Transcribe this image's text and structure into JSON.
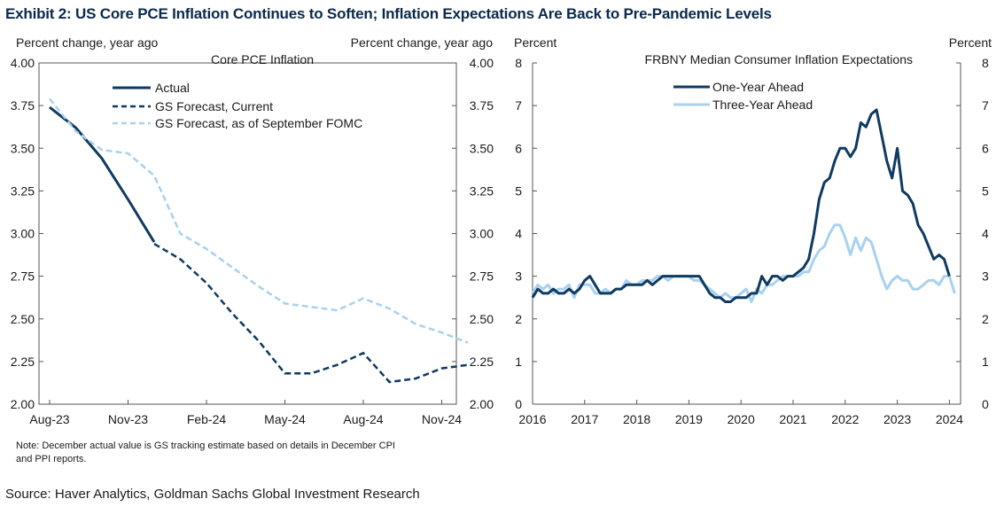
{
  "exhibit_title": "Exhibit 2: US Core PCE Inflation Continues to Soften; Inflation Expectations Are Back to Pre-Pandemic Levels",
  "source": "Source: Haver Analytics, Goldman Sachs Global Investment Research",
  "colors": {
    "navy": "#0f3a61",
    "light_blue": "#a9d1f0",
    "title": "#0b2a4a"
  },
  "chart_data": [
    {
      "type": "line",
      "title": "Core PCE Inflation",
      "ylabel_left": "Percent change, year ago",
      "ylabel_right": "Percent change, year ago",
      "ylim": [
        2.0,
        4.0
      ],
      "yticks": [
        "4.00",
        "3.75",
        "3.50",
        "3.25",
        "3.00",
        "2.75",
        "2.50",
        "2.25",
        "2.00"
      ],
      "xticks": [
        {
          "x": "2023-08",
          "label": "Aug-23"
        },
        {
          "x": "2023-11",
          "label": "Nov-23"
        },
        {
          "x": "2024-02",
          "label": "Feb-24"
        },
        {
          "x": "2024-05",
          "label": "May-24"
        },
        {
          "x": "2024-08",
          "label": "Aug-24"
        },
        {
          "x": "2024-11",
          "label": "Nov-24"
        }
      ],
      "legend_position": "top-left",
      "note": "Note: December actual value is GS tracking estimate based on details in December CPI and PPI reports.",
      "series": [
        {
          "name": "Actual",
          "style": "solid",
          "color": "#0f3a61",
          "points": [
            [
              "2023-08",
              3.74
            ],
            [
              "2023-09",
              3.62
            ],
            [
              "2023-10",
              3.44
            ],
            [
              "2023-11",
              3.2
            ],
            [
              "2023-12",
              2.95
            ]
          ]
        },
        {
          "name": "GS Forecast, Current",
          "style": "dashed",
          "color": "#0f3a61",
          "points": [
            [
              "2023-12",
              2.94
            ],
            [
              "2024-01",
              2.85
            ],
            [
              "2024-02",
              2.71
            ],
            [
              "2024-03",
              2.53
            ],
            [
              "2024-04",
              2.37
            ],
            [
              "2024-05",
              2.18
            ],
            [
              "2024-06",
              2.18
            ],
            [
              "2024-07",
              2.23
            ],
            [
              "2024-08",
              2.3
            ],
            [
              "2024-09",
              2.13
            ],
            [
              "2024-10",
              2.15
            ],
            [
              "2024-11",
              2.21
            ],
            [
              "2024-12",
              2.23
            ]
          ]
        },
        {
          "name": "GS Forecast, as of September FOMC",
          "style": "dashed",
          "color": "#a9d1f0",
          "points": [
            [
              "2023-08",
              3.79
            ],
            [
              "2023-09",
              3.6
            ],
            [
              "2023-10",
              3.49
            ],
            [
              "2023-11",
              3.47
            ],
            [
              "2023-12",
              3.34
            ],
            [
              "2024-01",
              3.0
            ],
            [
              "2024-02",
              2.91
            ],
            [
              "2024-03",
              2.8
            ],
            [
              "2024-04",
              2.69
            ],
            [
              "2024-05",
              2.59
            ],
            [
              "2024-06",
              2.57
            ],
            [
              "2024-07",
              2.55
            ],
            [
              "2024-08",
              2.62
            ],
            [
              "2024-09",
              2.56
            ],
            [
              "2024-10",
              2.47
            ],
            [
              "2024-11",
              2.42
            ],
            [
              "2024-12",
              2.36
            ]
          ]
        }
      ]
    },
    {
      "type": "line",
      "title": "FRBNY Median Consumer Inflation Expectations",
      "ylabel_left": "Percent",
      "ylabel_right": "Percent",
      "ylim": [
        0,
        8
      ],
      "yticks": [
        "8",
        "7",
        "6",
        "5",
        "4",
        "3",
        "2",
        "1",
        "0"
      ],
      "xlim": [
        2016,
        2024.3
      ],
      "xticks": [
        "2016",
        "2017",
        "2018",
        "2019",
        "2020",
        "2021",
        "2022",
        "2023",
        "2024"
      ],
      "legend_position": "top-center",
      "series": [
        {
          "name": "One-Year Ahead",
          "style": "solid",
          "color": "#0f3a61",
          "points": [
            [
              2016.0,
              2.5
            ],
            [
              2016.1,
              2.7
            ],
            [
              2016.2,
              2.6
            ],
            [
              2016.3,
              2.6
            ],
            [
              2016.4,
              2.7
            ],
            [
              2016.5,
              2.6
            ],
            [
              2016.6,
              2.6
            ],
            [
              2016.7,
              2.7
            ],
            [
              2016.8,
              2.6
            ],
            [
              2016.9,
              2.7
            ],
            [
              2017.0,
              2.9
            ],
            [
              2017.1,
              3.0
            ],
            [
              2017.2,
              2.8
            ],
            [
              2017.3,
              2.6
            ],
            [
              2017.4,
              2.6
            ],
            [
              2017.5,
              2.6
            ],
            [
              2017.6,
              2.7
            ],
            [
              2017.7,
              2.7
            ],
            [
              2017.8,
              2.8
            ],
            [
              2017.9,
              2.8
            ],
            [
              2018.0,
              2.8
            ],
            [
              2018.1,
              2.8
            ],
            [
              2018.2,
              2.9
            ],
            [
              2018.3,
              2.8
            ],
            [
              2018.4,
              2.9
            ],
            [
              2018.5,
              3.0
            ],
            [
              2018.6,
              3.0
            ],
            [
              2018.7,
              3.0
            ],
            [
              2018.8,
              3.0
            ],
            [
              2018.9,
              3.0
            ],
            [
              2019.0,
              3.0
            ],
            [
              2019.1,
              3.0
            ],
            [
              2019.2,
              3.0
            ],
            [
              2019.3,
              2.8
            ],
            [
              2019.4,
              2.6
            ],
            [
              2019.5,
              2.5
            ],
            [
              2019.6,
              2.5
            ],
            [
              2019.7,
              2.4
            ],
            [
              2019.8,
              2.4
            ],
            [
              2019.9,
              2.5
            ],
            [
              2020.0,
              2.5
            ],
            [
              2020.1,
              2.5
            ],
            [
              2020.2,
              2.6
            ],
            [
              2020.3,
              2.6
            ],
            [
              2020.4,
              3.0
            ],
            [
              2020.5,
              2.8
            ],
            [
              2020.6,
              3.0
            ],
            [
              2020.7,
              3.0
            ],
            [
              2020.8,
              2.9
            ],
            [
              2020.9,
              3.0
            ],
            [
              2021.0,
              3.0
            ],
            [
              2021.1,
              3.1
            ],
            [
              2021.2,
              3.2
            ],
            [
              2021.3,
              3.4
            ],
            [
              2021.4,
              4.0
            ],
            [
              2021.5,
              4.8
            ],
            [
              2021.6,
              5.2
            ],
            [
              2021.7,
              5.3
            ],
            [
              2021.8,
              5.7
            ],
            [
              2021.9,
              6.0
            ],
            [
              2022.0,
              6.0
            ],
            [
              2022.1,
              5.8
            ],
            [
              2022.2,
              6.0
            ],
            [
              2022.3,
              6.6
            ],
            [
              2022.4,
              6.5
            ],
            [
              2022.5,
              6.8
            ],
            [
              2022.6,
              6.9
            ],
            [
              2022.7,
              6.3
            ],
            [
              2022.8,
              5.7
            ],
            [
              2022.9,
              5.3
            ],
            [
              2023.0,
              6.0
            ],
            [
              2023.1,
              5.0
            ],
            [
              2023.2,
              4.9
            ],
            [
              2023.3,
              4.7
            ],
            [
              2023.4,
              4.2
            ],
            [
              2023.5,
              4.0
            ],
            [
              2023.6,
              3.7
            ],
            [
              2023.7,
              3.4
            ],
            [
              2023.8,
              3.5
            ],
            [
              2023.9,
              3.4
            ],
            [
              2024.0,
              3.0
            ]
          ]
        },
        {
          "name": "Three-Year Ahead",
          "style": "solid",
          "color": "#a9d1f0",
          "points": [
            [
              2016.0,
              2.6
            ],
            [
              2016.1,
              2.8
            ],
            [
              2016.2,
              2.7
            ],
            [
              2016.3,
              2.8
            ],
            [
              2016.4,
              2.6
            ],
            [
              2016.5,
              2.7
            ],
            [
              2016.6,
              2.7
            ],
            [
              2016.7,
              2.8
            ],
            [
              2016.8,
              2.5
            ],
            [
              2016.9,
              2.8
            ],
            [
              2017.0,
              2.8
            ],
            [
              2017.1,
              2.8
            ],
            [
              2017.2,
              2.6
            ],
            [
              2017.3,
              2.6
            ],
            [
              2017.4,
              2.7
            ],
            [
              2017.5,
              2.6
            ],
            [
              2017.6,
              2.7
            ],
            [
              2017.7,
              2.7
            ],
            [
              2017.8,
              2.9
            ],
            [
              2017.9,
              2.8
            ],
            [
              2018.0,
              2.8
            ],
            [
              2018.1,
              2.9
            ],
            [
              2018.2,
              2.9
            ],
            [
              2018.3,
              2.9
            ],
            [
              2018.4,
              3.0
            ],
            [
              2018.5,
              3.0
            ],
            [
              2018.6,
              2.9
            ],
            [
              2018.7,
              3.0
            ],
            [
              2018.8,
              3.0
            ],
            [
              2018.9,
              3.0
            ],
            [
              2019.0,
              3.0
            ],
            [
              2019.1,
              2.9
            ],
            [
              2019.2,
              2.9
            ],
            [
              2019.3,
              2.8
            ],
            [
              2019.4,
              2.7
            ],
            [
              2019.5,
              2.6
            ],
            [
              2019.6,
              2.5
            ],
            [
              2019.7,
              2.6
            ],
            [
              2019.8,
              2.5
            ],
            [
              2019.9,
              2.5
            ],
            [
              2020.0,
              2.6
            ],
            [
              2020.1,
              2.7
            ],
            [
              2020.2,
              2.4
            ],
            [
              2020.3,
              2.7
            ],
            [
              2020.4,
              2.6
            ],
            [
              2020.5,
              2.8
            ],
            [
              2020.6,
              2.8
            ],
            [
              2020.7,
              2.9
            ],
            [
              2020.8,
              3.0
            ],
            [
              2020.9,
              3.0
            ],
            [
              2021.0,
              3.0
            ],
            [
              2021.1,
              3.0
            ],
            [
              2021.2,
              3.1
            ],
            [
              2021.3,
              3.1
            ],
            [
              2021.4,
              3.4
            ],
            [
              2021.5,
              3.6
            ],
            [
              2021.6,
              3.7
            ],
            [
              2021.7,
              4.0
            ],
            [
              2021.8,
              4.2
            ],
            [
              2021.9,
              4.2
            ],
            [
              2022.0,
              3.9
            ],
            [
              2022.1,
              3.5
            ],
            [
              2022.2,
              3.9
            ],
            [
              2022.3,
              3.6
            ],
            [
              2022.4,
              3.9
            ],
            [
              2022.5,
              3.8
            ],
            [
              2022.6,
              3.4
            ],
            [
              2022.7,
              3.0
            ],
            [
              2022.8,
              2.7
            ],
            [
              2022.9,
              2.9
            ],
            [
              2023.0,
              3.0
            ],
            [
              2023.1,
              2.9
            ],
            [
              2023.2,
              2.9
            ],
            [
              2023.3,
              2.7
            ],
            [
              2023.4,
              2.7
            ],
            [
              2023.5,
              2.8
            ],
            [
              2023.6,
              2.9
            ],
            [
              2023.7,
              2.9
            ],
            [
              2023.8,
              2.8
            ],
            [
              2023.9,
              3.0
            ],
            [
              2024.0,
              3.0
            ],
            [
              2024.1,
              2.6
            ]
          ]
        }
      ]
    }
  ]
}
